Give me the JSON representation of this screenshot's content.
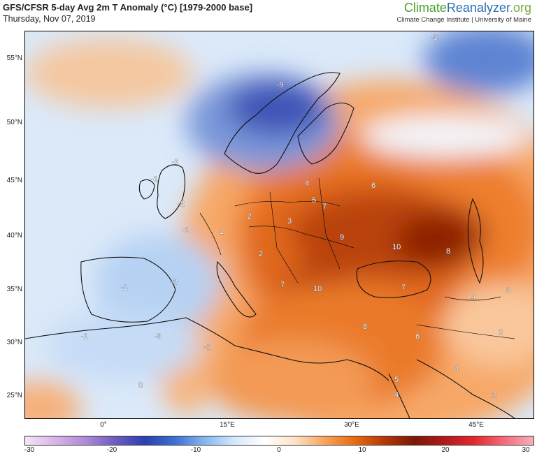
{
  "header": {
    "title": "GFS/CFSR 5-day Avg 2m T Anomaly (°C) [1979-2000 base]",
    "date": "Thursday, Nov 07, 2019"
  },
  "brand": {
    "part1": "Climate",
    "part2": "Reanalyzer",
    "part3": ".org",
    "subtitle": "Climate Change Institute | University of Maine"
  },
  "lat_labels": [
    "55°N",
    "50°N",
    "45°N",
    "40°N",
    "35°N",
    "30°N",
    "25°N"
  ],
  "lon_labels": [
    "0°",
    "15°E",
    "30°E",
    "45°E"
  ],
  "colorbar": {
    "ticks": [
      "-30",
      "-20",
      "-10",
      "0",
      "10",
      "20",
      "30"
    ],
    "colors": [
      "#f3e6f5",
      "#d9b3e8",
      "#b08ad6",
      "#6e5cc2",
      "#2b3fb0",
      "#3d6fd1",
      "#86b6ee",
      "#d6e8fa",
      "#ffffff",
      "#fde3c8",
      "#f8a45c",
      "#ea6a12",
      "#b33a06",
      "#7d1705",
      "#b0191b",
      "#e3272c",
      "#f36a78",
      "#f8b0b9"
    ]
  },
  "contour_labels": [
    {
      "text": "-9"
    },
    {
      "text": "-1"
    },
    {
      "text": "-1"
    },
    {
      "text": "-2"
    },
    {
      "text": "-1"
    },
    {
      "text": "-2"
    },
    {
      "text": "-3"
    },
    {
      "text": "-1"
    },
    {
      "text": "0"
    },
    {
      "text": "-1"
    },
    {
      "text": "-2"
    },
    {
      "text": "1"
    },
    {
      "text": "2"
    },
    {
      "text": "2"
    },
    {
      "text": "3"
    },
    {
      "text": "4"
    },
    {
      "text": "5"
    },
    {
      "text": "6"
    },
    {
      "text": "7"
    },
    {
      "text": "9"
    },
    {
      "text": "10"
    },
    {
      "text": "8"
    },
    {
      "text": "10"
    },
    {
      "text": "7"
    },
    {
      "text": "7"
    },
    {
      "text": "8"
    },
    {
      "text": "6"
    },
    {
      "text": "4"
    },
    {
      "text": "2"
    },
    {
      "text": "4"
    },
    {
      "text": "5"
    },
    {
      "text": "4"
    },
    {
      "text": "3"
    },
    {
      "text": "-3"
    },
    {
      "text": "2"
    }
  ]
}
